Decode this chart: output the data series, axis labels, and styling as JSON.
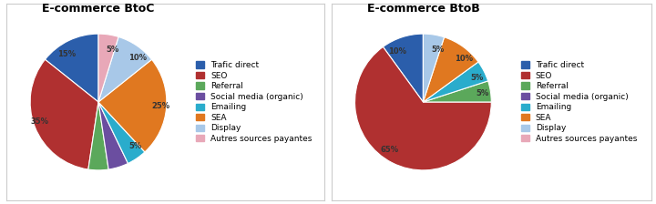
{
  "btoc": {
    "title": "E-commerce BtoC",
    "values": [
      15,
      35,
      5,
      5,
      5,
      25,
      10,
      5
    ],
    "colors": [
      "#2B5EAB",
      "#B03030",
      "#5BA85B",
      "#6B4EA0",
      "#2AACCC",
      "#E07820",
      "#A8C8E8",
      "#E8A8B8"
    ],
    "pct_labels": [
      "15%",
      "35%",
      "",
      "",
      "5%",
      "25%",
      "10%",
      "5%"
    ],
    "startangle": 90
  },
  "btob": {
    "title": "E-commerce BtoB",
    "values": [
      10,
      65,
      5,
      5,
      10,
      5
    ],
    "colors": [
      "#2B5EAB",
      "#B03030",
      "#5BA85B",
      "#2AACCC",
      "#E07820",
      "#A8C8E8"
    ],
    "pct_labels": [
      "10%",
      "65%",
      "5%",
      "5%",
      "10%",
      "5%"
    ],
    "startangle": 90
  },
  "legend_labels": [
    "Trafic direct",
    "SEO",
    "Referral",
    "Social media (organic)",
    "Emailing",
    "SEA",
    "Display",
    "Autres sources payantes"
  ],
  "legend_colors": [
    "#2B5EAB",
    "#B03030",
    "#5BA85B",
    "#6B4EA0",
    "#2AACCC",
    "#E07820",
    "#A8C8E8",
    "#E8A8B8"
  ],
  "background_color": "#FFFFFF",
  "panel_bg": "#FFFFFF",
  "border_color": "#CCCCCC",
  "title_fontsize": 9,
  "label_fontsize": 6,
  "legend_fontsize": 6.5
}
